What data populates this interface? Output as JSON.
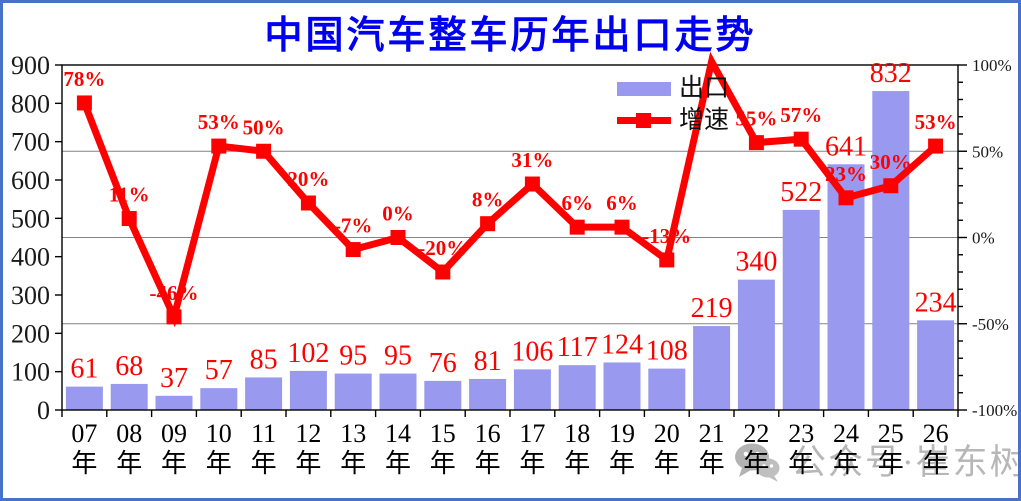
{
  "title": "中国汽车整车历年出口走势",
  "legend": {
    "bar_label": "出口",
    "line_label": "增速"
  },
  "watermark": {
    "icon": "wechat-icon",
    "text": "公众号·崔东树"
  },
  "colors": {
    "bar": "#9999F0",
    "line": "#FF0000",
    "value_labels": "#FF0000",
    "title": "#0000F0",
    "grid": "#848484",
    "axis_text": "#1A1A1A",
    "plot_border": "#000000",
    "frame": "#4673C8",
    "watermark": "#ABABAB"
  },
  "chart_data": {
    "type": "bar+line",
    "title": "中国汽车整车历年出口走势",
    "categories": [
      "07年",
      "08年",
      "09年",
      "10年",
      "11年",
      "12年",
      "13年",
      "14年",
      "15年",
      "16年",
      "17年",
      "18年",
      "19年",
      "20年",
      "21年",
      "22年",
      "23年",
      "24年",
      "25年",
      "26年"
    ],
    "series": [
      {
        "name": "出口",
        "type": "bar",
        "axis": "left",
        "values": [
          61,
          68,
          37,
          57,
          85,
          102,
          95,
          95,
          76,
          81,
          106,
          117,
          124,
          108,
          219,
          340,
          522,
          641,
          832,
          234
        ]
      },
      {
        "name": "增速",
        "type": "line",
        "axis": "right",
        "unit": "%",
        "values": [
          78,
          11,
          -46,
          53,
          50,
          20,
          -7,
          0,
          -20,
          8,
          31,
          6,
          6,
          -13,
          102,
          55,
          57,
          23,
          30,
          53
        ],
        "point_labels": [
          "78%",
          "11%",
          "-46%",
          "53%",
          "50%",
          "20%",
          "-7%",
          "0%",
          "-20%",
          "8%",
          "31%",
          "6%",
          "6%",
          "-13%",
          "",
          "55%",
          "57%",
          "23%",
          "30%",
          "53%"
        ]
      }
    ],
    "left_axis": {
      "min": 0,
      "max": 900,
      "step": 100,
      "tick_labels": [
        "0",
        "100",
        "200",
        "300",
        "400",
        "500",
        "600",
        "700",
        "800",
        "900"
      ]
    },
    "right_axis": {
      "min": -100,
      "max": 100,
      "major_step": 50,
      "minor_step": 10,
      "tick_labels": [
        "-100%",
        "-50%",
        "0%",
        "50%",
        "100%"
      ]
    },
    "gridlines_right_pct": [
      50,
      0,
      -50
    ],
    "grid": "horizontal",
    "legend_position": "top-right-inside"
  }
}
